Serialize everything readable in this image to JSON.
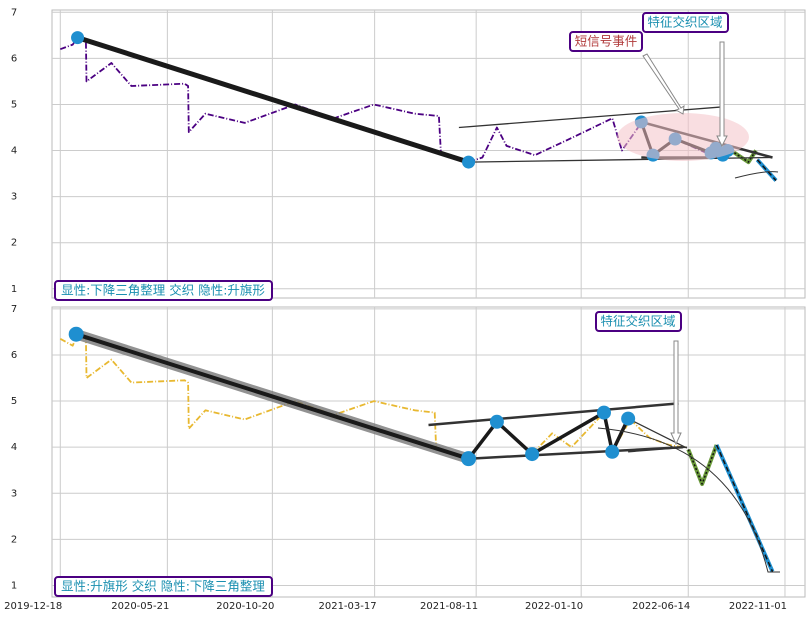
{
  "chart_data": [
    {
      "type": "line",
      "ylim": [
        0.8,
        7.05
      ],
      "yticks": [
        1,
        2,
        3,
        4,
        5,
        6,
        7
      ],
      "grid": true,
      "annotations": [
        "短信号事件",
        "特征交织区域",
        "显性:下降三角整理 交织 隐性:升旗形"
      ],
      "series": [
        {
          "color": "#4b0082",
          "width": 1.8,
          "dash": "6 2 1 2",
          "x": [
            "2019-12-18",
            "2020-01-05",
            "2020-01-12",
            "2020-01-24",
            "2020-01-25",
            "2020-03-01",
            "2020-03-30",
            "2020-06-15",
            "2020-06-20",
            "2020-06-21",
            "2020-07-15",
            "2020-09-10",
            "2020-11-22",
            "2021-01-17",
            "2021-03-16",
            "2021-05-14",
            "2021-06-18",
            "2021-06-21",
            "2021-07-31",
            "2021-08-20",
            "2021-09-10",
            "2021-09-24",
            "2021-11-04",
            "2021-12-31",
            "2022-02-24",
            "2022-03-10",
            "2022-04-07",
            "2022-04-24",
            "2022-05-26",
            "2022-07-10",
            "2022-08-05"
          ],
          "values": [
            6.2,
            6.3,
            6.45,
            6.4,
            5.5,
            5.9,
            5.4,
            5.45,
            5.4,
            4.4,
            4.8,
            4.6,
            5.0,
            4.7,
            5.0,
            4.8,
            4.75,
            3.95,
            3.75,
            3.85,
            4.5,
            4.1,
            3.9,
            4.3,
            4.7,
            4.0,
            4.6,
            3.9,
            4.25,
            3.95,
            3.9
          ]
        },
        {
          "color": "#6a9a3a",
          "width": 4,
          "over": "2 2",
          "x": [
            "2022-08-15",
            "2022-09-09",
            "2022-09-20"
          ],
          "values": [
            4.0,
            3.75,
            4.0
          ]
        },
        {
          "color": "#1f8fd0",
          "width": 4,
          "over": "5 3",
          "x": [
            "2022-09-22",
            "2022-10-19"
          ],
          "values": [
            3.8,
            3.35
          ]
        },
        {
          "color": "#333333",
          "width": 1.3,
          "x": [
            "2021-07-17",
            "2022-08-04"
          ],
          "values": [
            4.5,
            4.95
          ]
        },
        {
          "color": "#333333",
          "width": 1.3,
          "x": [
            "2021-07-31",
            "2022-10-14"
          ],
          "values": [
            3.75,
            3.85
          ]
        },
        {
          "color": "#333333",
          "width": 2.5,
          "x": [
            "2022-04-07",
            "2022-10-14"
          ],
          "values": [
            4.62,
            3.85
          ]
        },
        {
          "color": "#333333",
          "width": 2.5,
          "x": [
            "2022-04-07",
            "2022-08-10"
          ],
          "values": [
            3.85,
            3.85
          ]
        },
        {
          "color": "#1a1a1a",
          "width": 5,
          "marker": 6.5,
          "markerColor": "#1f8fd0",
          "x": [
            "2020-01-12",
            "2021-07-31"
          ],
          "values": [
            6.45,
            3.75
          ]
        },
        {
          "color": "#1a1a1a",
          "width": 3,
          "marker": 6.5,
          "markerColor": "#1f8fd0",
          "x": [
            "2022-04-07",
            "2022-04-24",
            "2022-05-26",
            "2022-07-17",
            "2022-07-24",
            "2022-08-03",
            "2022-08-10"
          ],
          "values": [
            4.62,
            3.9,
            4.25,
            3.95,
            4.05,
            3.9,
            4.0
          ]
        }
      ]
    },
    {
      "type": "line",
      "xlim": [
        "2019-12-06",
        "2022-11-30"
      ],
      "xticks": [
        "2019-12-18",
        "2020-05-21",
        "2020-10-20",
        "2021-03-17",
        "2021-08-11",
        "2022-01-10",
        "2022-06-14",
        "2022-11-01"
      ],
      "ylim": [
        0.75,
        7.04
      ],
      "yticks": [
        1,
        2,
        3,
        4,
        5,
        6,
        7
      ],
      "grid": true,
      "annotations": [
        "特征交织区域",
        "显性:升旗形 交织 隐性:下降三角整理"
      ],
      "series": [
        {
          "color": "#e8b830",
          "width": 1.8,
          "dash": "6 2 1 2",
          "x": [
            "2019-12-18",
            "2020-01-05",
            "2020-01-12",
            "2020-01-24",
            "2020-01-25",
            "2020-03-01",
            "2020-03-30",
            "2020-06-15",
            "2020-06-20",
            "2020-06-21",
            "2020-07-15",
            "2020-09-10",
            "2020-11-22",
            "2021-01-17",
            "2021-03-16",
            "2021-05-14",
            "2021-06-12",
            "2021-06-14",
            "2021-07-31",
            "2021-09-10",
            "2021-10-31",
            "2021-11-29",
            "2021-12-27",
            "2022-02-12",
            "2022-02-24",
            "2022-03-22",
            "2022-04-19",
            "2022-05-17",
            "2022-06-06",
            "2022-06-10"
          ],
          "values": [
            6.35,
            6.2,
            6.45,
            6.4,
            5.5,
            5.9,
            5.4,
            5.45,
            5.4,
            4.4,
            4.8,
            4.6,
            5.0,
            4.7,
            5.0,
            4.8,
            4.75,
            4.0,
            3.75,
            4.55,
            3.85,
            4.3,
            4.0,
            4.75,
            3.9,
            4.6,
            4.2,
            4.05,
            4.0,
            4.0
          ]
        },
        {
          "color": "#6a9a3a",
          "width": 4,
          "over": "2 2",
          "x": [
            "2022-06-14",
            "2022-07-04",
            "2022-07-25"
          ],
          "values": [
            3.95,
            3.2,
            4.05
          ]
        },
        {
          "color": "#1f8fd0",
          "width": 4,
          "over": "5 3",
          "x": [
            "2022-07-25",
            "2022-10-14"
          ],
          "values": [
            4.05,
            1.3
          ]
        },
        {
          "color": "#333333",
          "width": 2.5,
          "x": [
            "2021-06-03",
            "2022-05-31"
          ],
          "values": [
            4.48,
            4.95
          ]
        },
        {
          "color": "#333333",
          "width": 2.5,
          "x": [
            "2021-07-31",
            "2022-06-06"
          ],
          "values": [
            3.75,
            4.0
          ]
        },
        {
          "color": "#333333",
          "width": 1.3,
          "x": [
            "2022-03-19",
            "2022-06-12"
          ],
          "values": [
            4.62,
            3.98
          ]
        },
        {
          "color": "#333333",
          "width": 1.3,
          "x": [
            "2022-03-19",
            "2022-06-12"
          ],
          "values": [
            3.9,
            4.0
          ]
        },
        {
          "color": "#1a1a1a",
          "width": 4,
          "halo": "#777777",
          "marker": 7.5,
          "markerColor": "#1f8fd0",
          "x": [
            "2020-01-10",
            "2021-07-31"
          ],
          "values": [
            6.45,
            3.75
          ]
        },
        {
          "color": "#1a1a1a",
          "width": 3.5,
          "marker": 7,
          "markerColor": "#1f8fd0",
          "x": [
            "2021-07-31",
            "2021-09-10",
            "2021-10-31",
            "2022-02-12",
            "2022-02-24",
            "2022-03-19"
          ],
          "values": [
            3.75,
            4.55,
            3.85,
            4.75,
            3.9,
            4.62
          ]
        }
      ]
    }
  ]
}
